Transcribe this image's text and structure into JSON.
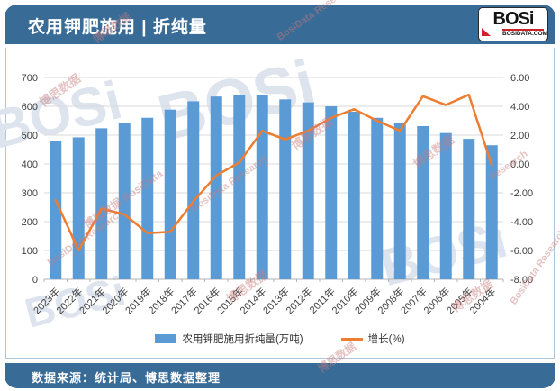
{
  "header": {
    "title": "农用钾肥施用 | 折纯量",
    "logo": {
      "name": "BOSi",
      "site": "BOSIDATA.COM"
    }
  },
  "footer": {
    "source": "数据来源：统计局、博思数据整理"
  },
  "watermarks": {
    "logo_text": "BOSi",
    "cn": "博思数据",
    "cn_full": "博思数据 BosiData",
    "en": "BosiData Research",
    "en_short": "Research"
  },
  "colors": {
    "brand_blue": "#396b97",
    "bar_blue": "#5b9bd5",
    "line_orange": "#ed7d31",
    "logo_red": "#cc2127",
    "grid_gray": "#d9d9d9"
  },
  "chart_data": {
    "type": "bar+line combo",
    "categories": [
      "2023年",
      "2022年",
      "2021年",
      "2020年",
      "2019年",
      "2018年",
      "2017年",
      "2016年",
      "2015年",
      "2014年",
      "2013年",
      "2012年",
      "2011年",
      "2010年",
      "2009年",
      "2008年",
      "2007年",
      "2006年",
      "2005年",
      "2004年"
    ],
    "series": [
      {
        "name": "农用钾肥施用折纯量(万吨)",
        "type": "bar",
        "axis": "left",
        "color": "#5b9bd5",
        "values": [
          480.1,
          492.4,
          523.8,
          540.6,
          560.2,
          588.4,
          617.4,
          633.9,
          639.0,
          638.4,
          624.0,
          613.6,
          599.8,
          581.2,
          560.0,
          543.7,
          531.4,
          507.3,
          487.2,
          465.0
        ]
      },
      {
        "name": "增长(%)",
        "type": "line",
        "axis": "right",
        "color": "#ed7d31",
        "values": [
          -2.5,
          -6.0,
          -3.1,
          -3.5,
          -4.8,
          -4.7,
          -2.6,
          -0.8,
          0.1,
          2.3,
          1.7,
          2.3,
          3.2,
          3.8,
          3.0,
          2.3,
          4.7,
          4.1,
          4.8,
          -0.1
        ]
      }
    ],
    "left_axis": {
      "min": 0,
      "max": 700,
      "step": 100,
      "tick_labels": [
        "0",
        "100",
        "200",
        "300",
        "400",
        "500",
        "600",
        "700"
      ]
    },
    "right_axis": {
      "min": -8,
      "max": 6,
      "step": 2,
      "tick_labels": [
        "-8.00",
        "-6.00",
        "-4.00",
        "-2.00",
        "0.00",
        "2.00",
        "4.00",
        "6.00"
      ]
    },
    "grid": true,
    "legend_position": "bottom"
  }
}
